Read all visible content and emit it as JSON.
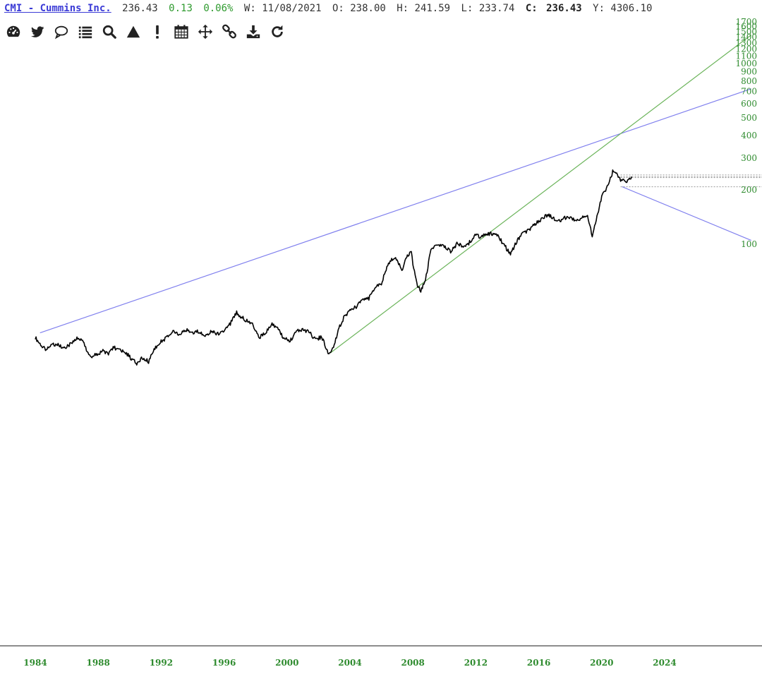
{
  "header": {
    "symbol": "CMI - Cummins Inc.",
    "last": "236.43",
    "change": "0.13",
    "change_pct": "0.06%",
    "period": "W: 11/08/2021",
    "open": "O: 238.00",
    "high": "H: 241.59",
    "low": "L: 233.74",
    "close_label": "C:",
    "close": "236.43",
    "y": "Y: 4306.10"
  },
  "toolbar": [
    {
      "name": "dashboard-icon"
    },
    {
      "name": "twitter-icon"
    },
    {
      "name": "comment-icon"
    },
    {
      "name": "list-icon"
    },
    {
      "name": "search-icon"
    },
    {
      "name": "triangle-icon"
    },
    {
      "name": "exclamation-icon"
    },
    {
      "name": "calendar-icon"
    },
    {
      "name": "move-icon"
    },
    {
      "name": "link-icon"
    },
    {
      "name": "download-icon"
    },
    {
      "name": "refresh-icon"
    }
  ],
  "colors": {
    "price": "#000000",
    "upper_trend": "#8080ee",
    "lower_trend": "#6bb45a",
    "axis_label": "#2e8b2e",
    "dotted": "#999999"
  },
  "chart_data": {
    "type": "line",
    "title": "",
    "xlabel": "",
    "ylabel": "",
    "y_scale": "log",
    "ylim": [
      20,
      1700
    ],
    "xlim": [
      1984,
      2029.5
    ],
    "yticks": [
      100,
      200,
      300,
      400,
      500,
      600,
      700,
      800,
      900,
      1000,
      1100,
      1200,
      1300,
      1400,
      1500,
      1600,
      1700
    ],
    "xticks": [
      1984,
      1988,
      1992,
      1996,
      2000,
      2004,
      2008,
      2012,
      2016,
      2020,
      2024
    ],
    "grid": false,
    "series": [
      {
        "name": "",
        "x": [
          1984.0,
          1984.3,
          1984.6,
          1985.0,
          1985.4,
          1985.8,
          1986.2,
          1986.6,
          1987.0,
          1987.3,
          1987.6,
          1987.8,
          1988.0,
          1988.3,
          1988.6,
          1989.0,
          1989.4,
          1989.8,
          1990.2,
          1990.5,
          1990.8,
          1991.2,
          1991.6,
          1992.0,
          1992.4,
          1992.8,
          1993.2,
          1993.6,
          1994.0,
          1994.4,
          1994.8,
          1995.2,
          1995.6,
          1996.0,
          1996.4,
          1996.8,
          1997.0,
          1997.4,
          1997.8,
          1998.2,
          1998.6,
          1999.0,
          1999.4,
          1999.8,
          2000.2,
          2000.6,
          2001.0,
          2001.4,
          2001.8,
          2002.2,
          2002.6,
          2002.8,
          2003.0,
          2003.3,
          2003.6,
          2004.0,
          2004.4,
          2004.8,
          2005.2,
          2005.6,
          2006.0,
          2006.4,
          2006.8,
          2007.0,
          2007.3,
          2007.6,
          2007.9,
          2008.0,
          2008.3,
          2008.5,
          2008.7,
          2008.9,
          2009.1,
          2009.4,
          2009.7,
          2010.0,
          2010.4,
          2010.8,
          2011.2,
          2011.5,
          2011.7,
          2012.0,
          2012.3,
          2012.6,
          2013.0,
          2013.4,
          2013.8,
          2014.2,
          2014.6,
          2015.0,
          2015.4,
          2015.8,
          2016.2,
          2016.6,
          2017.0,
          2017.4,
          2017.8,
          2018.1,
          2018.4,
          2018.8,
          2019.1,
          2019.4,
          2019.8,
          2020.0,
          2020.2,
          2020.4,
          2020.7,
          2021.0,
          2021.2,
          2021.5,
          2021.8,
          2021.9
        ],
        "values": [
          30.5,
          28.0,
          26.3,
          27.5,
          28.2,
          26.2,
          27.9,
          30.2,
          29.4,
          25.7,
          23.6,
          24.6,
          24.2,
          26.0,
          24.7,
          26.9,
          25.7,
          24.9,
          22.8,
          21.7,
          23.7,
          22.4,
          26.5,
          28.9,
          30.7,
          33.2,
          31.6,
          33.6,
          32.6,
          33.0,
          30.9,
          33.0,
          31.8,
          33.7,
          36.3,
          42.0,
          40.0,
          38.0,
          36.7,
          30.5,
          31.9,
          36.0,
          34.4,
          29.9,
          29.3,
          32.8,
          33.7,
          32.8,
          29.6,
          30.8,
          25.4,
          25.0,
          27.5,
          34.1,
          39.3,
          42.5,
          45.1,
          48.9,
          50.0,
          57.7,
          60.5,
          77.6,
          84.6,
          82.5,
          71.8,
          85.0,
          90.0,
          78.4,
          59.0,
          55.5,
          60.0,
          69.3,
          90.0,
          99.2,
          98.6,
          97.9,
          91.1,
          100.3,
          97.7,
          99.9,
          105.4,
          113.5,
          109.7,
          112.8,
          115.0,
          111.1,
          99.0,
          88.0,
          103.3,
          114.8,
          120.5,
          129.5,
          138.4,
          145.0,
          138.8,
          134.9,
          142.1,
          140.1,
          134.1,
          140.2,
          145.4,
          111.4,
          154.1,
          185.1,
          193.1,
          212.2,
          252.2,
          245.0,
          226.9,
          222.2,
          230.1,
          236.43
        ]
      },
      {
        "name": "",
        "role": "upper-trendline",
        "x": [
          1984.3,
          2029.5
        ],
        "values": [
          32.3,
          725
        ]
      },
      {
        "name": "",
        "role": "lower-trendline",
        "x": [
          2002.75,
          2029.5
        ],
        "values": [
          25.0,
          1440
        ]
      },
      {
        "name": "",
        "role": "channel-line",
        "x": [
          2021.3,
          2029.5
        ],
        "values": [
          208.0,
          105
        ]
      }
    ],
    "reference_levels": [
      241.59,
      236.43,
      233.74,
      208.0
    ]
  }
}
